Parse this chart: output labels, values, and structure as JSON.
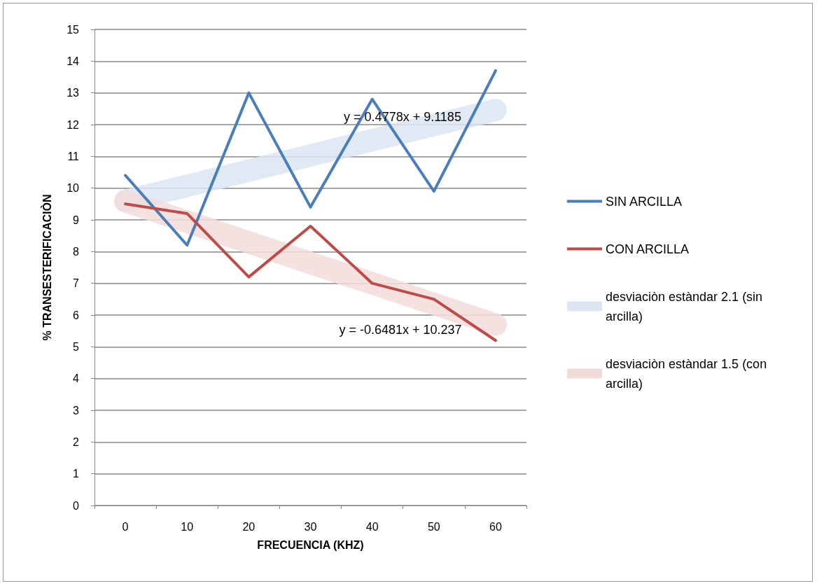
{
  "chart_data": {
    "type": "line",
    "xlabel": "FRECUENCIA (KHZ)",
    "ylabel": "% TRANSESTERIFICACIÒN",
    "categories": [
      "0",
      "10",
      "20",
      "30",
      "40",
      "50",
      "60"
    ],
    "series": [
      {
        "name": "SIN ARCILLA",
        "color": "#4a7ebb",
        "values": [
          10.4,
          8.2,
          13.0,
          9.4,
          12.8,
          9.9,
          13.7
        ]
      },
      {
        "name": "CON ARCILLA",
        "color": "#be4b48",
        "values": [
          9.5,
          9.2,
          7.2,
          8.8,
          7.0,
          6.5,
          5.2
        ]
      },
      {
        "name": "desviaciòn estàndar 2.1 (sin arcilla)",
        "color": "#dce6f2",
        "values": [
          9.6,
          10.07,
          10.55,
          11.03,
          11.51,
          11.99,
          12.46
        ]
      },
      {
        "name": "desviaciòn estàndar 1.5 (con arcilla)",
        "color": "#f2dcdb",
        "values": [
          9.59,
          8.94,
          8.29,
          7.64,
          7.0,
          6.35,
          5.7
        ]
      }
    ],
    "ylim": [
      0,
      15
    ],
    "yticks": [
      0,
      1,
      2,
      3,
      4,
      5,
      6,
      7,
      8,
      9,
      10,
      11,
      12,
      13,
      14,
      15
    ],
    "grid": "y",
    "legend": "right",
    "marker": "none",
    "line_style": "solid",
    "annotations": [
      "y = 0.4778x + 9.1185",
      "y = -0.6481x + 10.237"
    ]
  }
}
